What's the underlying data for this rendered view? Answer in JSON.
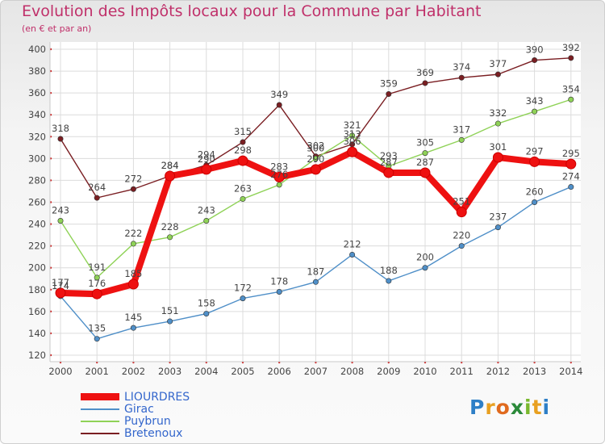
{
  "header": {
    "title": "Evolution des Impôts locaux pour la Commune par Habitant",
    "subtitle": "(en € et par an)"
  },
  "logo": {
    "text": "Proxiti"
  },
  "chart_data": {
    "type": "line",
    "title": "Evolution des Impôts locaux pour la Commune par Habitant",
    "subtitle": "(en € et par an)",
    "xlabel": "",
    "ylabel": "",
    "ylim": [
      120,
      400
    ],
    "yticks": [
      "120",
      "140",
      "160",
      "180",
      "200",
      "220",
      "240",
      "260",
      "280",
      "300",
      "320",
      "340",
      "360",
      "380",
      "400"
    ],
    "x": [
      "2000",
      "2001",
      "2002",
      "2003",
      "2004",
      "2005",
      "2006",
      "2007",
      "2008",
      "2009",
      "2010",
      "2011",
      "2012",
      "2013",
      "2014"
    ],
    "grid": true,
    "legend_position": "bottom-left",
    "series": [
      {
        "name": "LIOURDRES",
        "color": "#ee1111",
        "emphasis": true,
        "values": [
          177,
          176,
          185,
          284,
          290,
          298,
          283,
          290,
          306,
          287,
          287,
          251,
          301,
          297,
          295
        ],
        "labels": [
          "177",
          "176",
          "185",
          "284",
          "290",
          "298",
          "283",
          "290",
          "306",
          "287",
          "287",
          "251",
          "301",
          "297",
          "295"
        ]
      },
      {
        "name": "Girac",
        "color": "#4f8fc8",
        "values": [
          174,
          135,
          145,
          151,
          158,
          172,
          178,
          187,
          212,
          188,
          200,
          220,
          237,
          260,
          274
        ],
        "labels": [
          "174",
          "135",
          "145",
          "151",
          "158",
          "172",
          "178",
          "187",
          "212",
          "188",
          "200",
          "220",
          "237",
          "260",
          "274"
        ]
      },
      {
        "name": "Puybrun",
        "color": "#8fd257",
        "values": [
          243,
          191,
          222,
          228,
          243,
          263,
          276,
          300,
          321,
          293,
          305,
          317,
          332,
          343,
          354
        ],
        "labels": [
          "243",
          "191",
          "222",
          "228",
          "243",
          "263",
          "276",
          "300",
          "321",
          "293",
          "305",
          "317",
          "332",
          "343",
          "354"
        ]
      },
      {
        "name": "Bretenoux",
        "color": "#7a1e22",
        "values": [
          318,
          264,
          272,
          284,
          294,
          315,
          349,
          302,
          313,
          359,
          369,
          374,
          377,
          390,
          392
        ],
        "labels": [
          "318",
          "264",
          "272",
          "284",
          "294",
          "315",
          "349",
          "302",
          "313",
          "359",
          "369",
          "374",
          "377",
          "390",
          "392"
        ]
      }
    ]
  }
}
